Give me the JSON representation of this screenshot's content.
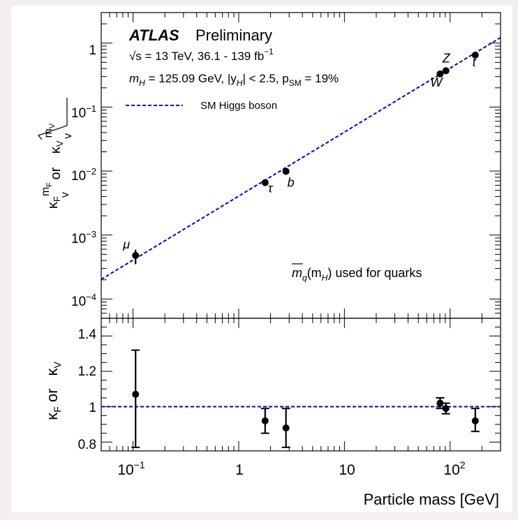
{
  "figure": {
    "background": "#ffffff",
    "frame_background": "#f4eeee",
    "xlabel": "Particle mass [GeV]"
  },
  "legend": {
    "atlas": "ATLAS",
    "preliminary": "Preliminary",
    "energy_line": "√s = 13 TeV, 36.1 - 139 fb",
    "energy_sup": "−1",
    "mass_line": "m",
    "mass_sub": "H",
    "mass_rest": " = 125.09 GeV, |y",
    "y_sub": "H",
    "y_rest": "| < 2.5, p",
    "p_sub": "SM",
    "p_rest": " = 19%",
    "sm_label": "SM Higgs boson",
    "quark_note": "m",
    "quark_note_q": "q",
    "quark_note_paren": "(m",
    "quark_note_H": "H",
    "quark_note_rest": ") used for quarks"
  },
  "upper_ylabel": {
    "kappa": "κ",
    "kappa_sub": "F",
    "mF": "m",
    "mF_sub": "F",
    "v": "v",
    "or": " or ",
    "sqrt_kappa": "κ",
    "sqrt_kappa_sub": "V",
    "mV": "m",
    "mV_sub": "V",
    "v2": "v"
  },
  "lower_ylabel": {
    "kappa": "κ",
    "kappa_sub": "F",
    "or": " or ",
    "sqrt_kappa": "κ",
    "sqrt_kappa_sub": "V"
  },
  "colors": {
    "sm_line": "#0000dd",
    "points": "#000000"
  },
  "chart_data": [
    {
      "type": "scatter",
      "panel": "upper",
      "xscale": "log",
      "yscale": "log",
      "xlim": [
        0.05,
        300
      ],
      "ylim": [
        5e-05,
        3
      ],
      "yticks": [
        "10^-4",
        "10^-3",
        "10^-2",
        "10^-1",
        "1"
      ],
      "reference_line": {
        "name": "SM Higgs boson",
        "style": "dashed"
      },
      "points": [
        {
          "label": "μ",
          "x": 0.1057,
          "y": 0.00048,
          "err_low": 0.00013,
          "err_high": 0.00011
        },
        {
          "label": "τ",
          "x": 1.777,
          "y": 0.0066,
          "err_low": 0.0005,
          "err_high": 0.0005
        },
        {
          "label": "b",
          "x": 2.8,
          "y": 0.0099,
          "err_low": 0.0011,
          "err_high": 0.0013
        },
        {
          "label": "W",
          "x": 80.4,
          "y": 0.33,
          "err_low": 0.008,
          "err_high": 0.008
        },
        {
          "label": "Z",
          "x": 91.2,
          "y": 0.37,
          "err_low": 0.01,
          "err_high": 0.01
        },
        {
          "label": "t",
          "x": 173,
          "y": 0.65,
          "err_low": 0.05,
          "err_high": 0.05
        }
      ]
    },
    {
      "type": "scatter",
      "panel": "lower",
      "xscale": "log",
      "xlim": [
        0.05,
        300
      ],
      "ylim": [
        0.75,
        1.5
      ],
      "yticks": [
        0.8,
        1,
        1.2,
        1.4
      ],
      "xticks": [
        "10^-1",
        "1",
        "10",
        "10^2"
      ],
      "reference_value": 1,
      "points": [
        {
          "label": "μ",
          "x": 0.1057,
          "y": 1.07,
          "err_low": 0.3,
          "err_high": 0.25
        },
        {
          "label": "τ",
          "x": 1.777,
          "y": 0.92,
          "err_low": 0.07,
          "err_high": 0.07
        },
        {
          "label": "b",
          "x": 2.8,
          "y": 0.88,
          "err_low": 0.11,
          "err_high": 0.11
        },
        {
          "label": "W",
          "x": 80.4,
          "y": 1.02,
          "err_low": 0.03,
          "err_high": 0.03
        },
        {
          "label": "Z",
          "x": 91.2,
          "y": 0.99,
          "err_low": 0.03,
          "err_high": 0.03
        },
        {
          "label": "t",
          "x": 173,
          "y": 0.92,
          "err_low": 0.06,
          "err_high": 0.07
        }
      ]
    }
  ]
}
